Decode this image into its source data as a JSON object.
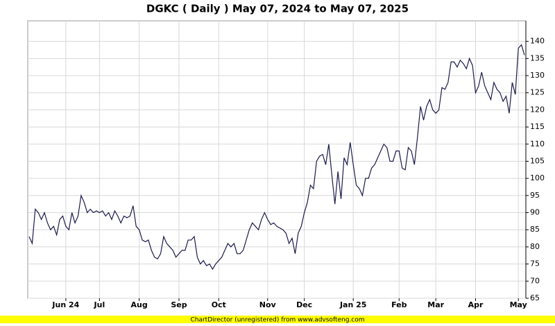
{
  "chart_data": {
    "type": "line",
    "title": "DGKC ( Daily ) May 07, 2024 to May 07, 2025",
    "footer": "ChartDirector (unregistered) from www.advsofteng.com",
    "categories": [
      null,
      null,
      null,
      null,
      null,
      null,
      null,
      null,
      null,
      null,
      null,
      null,
      "Jun 24",
      null,
      null,
      null,
      null,
      null,
      null,
      null,
      null,
      null,
      null,
      "Jul",
      null,
      null,
      null,
      null,
      null,
      null,
      null,
      null,
      null,
      null,
      null,
      null,
      "Aug",
      null,
      null,
      null,
      null,
      null,
      null,
      null,
      null,
      null,
      null,
      null,
      null,
      "Sep",
      null,
      null,
      null,
      null,
      null,
      null,
      null,
      null,
      null,
      null,
      null,
      null,
      "Oct",
      null,
      null,
      null,
      null,
      null,
      null,
      null,
      null,
      null,
      null,
      null,
      null,
      null,
      null,
      null,
      "Nov",
      null,
      null,
      null,
      null,
      null,
      null,
      null,
      null,
      null,
      null,
      null,
      "Dec",
      null,
      null,
      null,
      null,
      null,
      null,
      null,
      null,
      null,
      null,
      null,
      null,
      null,
      null,
      null,
      "Jan 25",
      null,
      null,
      null,
      null,
      null,
      null,
      null,
      null,
      null,
      null,
      null,
      null,
      null,
      null,
      "Feb",
      null,
      null,
      null,
      null,
      null,
      null,
      null,
      null,
      null,
      null,
      null,
      "Mar",
      null,
      null,
      null,
      null,
      null,
      null,
      null,
      null,
      null,
      null,
      null,
      null,
      "Apr",
      null,
      null,
      null,
      null,
      null,
      null,
      null,
      null,
      null,
      null,
      null,
      null,
      null,
      "May",
      null,
      null
    ],
    "series": [
      {
        "color": "#1a1a4a",
        "values": [
          83,
          81,
          91,
          90,
          88,
          90,
          87,
          85,
          86,
          83.5,
          88,
          89,
          86,
          85,
          90,
          87,
          89,
          95,
          93,
          90,
          91,
          90,
          90.5,
          90,
          90.5,
          89,
          90,
          88,
          90.5,
          89,
          87,
          89,
          88.5,
          89,
          92,
          86,
          85,
          82,
          81.5,
          82,
          79,
          77,
          76.5,
          78,
          83,
          81,
          80,
          79,
          77,
          78,
          79,
          79,
          82,
          82,
          83,
          77,
          75,
          76,
          74.5,
          75,
          73.5,
          75,
          76,
          77,
          79,
          81,
          80,
          81,
          78,
          78,
          79,
          82,
          85,
          87,
          86,
          85,
          88,
          90,
          88,
          86.5,
          87,
          86,
          85.5,
          85,
          84,
          81,
          82.5,
          78,
          84,
          86,
          90,
          93,
          98,
          97,
          105,
          106.5,
          107,
          104,
          110,
          101,
          92.5,
          102,
          94,
          106,
          104,
          110.5,
          104,
          98,
          97,
          95,
          100,
          100,
          103,
          104,
          106,
          108,
          110,
          109,
          105,
          105,
          108,
          108,
          103,
          102.5,
          109,
          108,
          104,
          112,
          121,
          117,
          121,
          123,
          120,
          119,
          120,
          126.5,
          126,
          128,
          134,
          134,
          132.5,
          134.5,
          133.5,
          132,
          135,
          133,
          125,
          127,
          131,
          127,
          125,
          123,
          128,
          126,
          125,
          122.5,
          124,
          119,
          128,
          124.5,
          138,
          139,
          136
        ]
      }
    ],
    "ylim": [
      65,
      146
    ],
    "yticks": [
      65,
      70,
      75,
      80,
      85,
      90,
      95,
      100,
      105,
      110,
      115,
      120,
      125,
      130,
      135,
      140
    ],
    "grid": true
  }
}
